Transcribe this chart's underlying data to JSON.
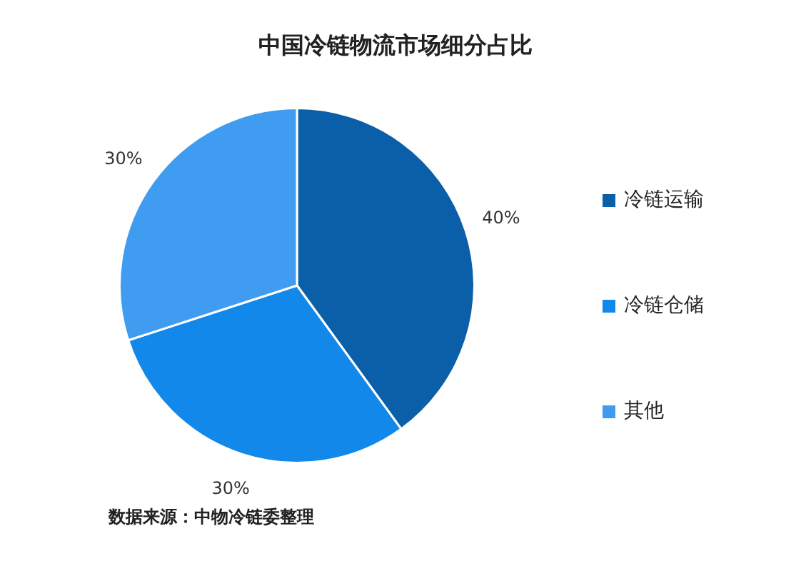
{
  "chart_data": {
    "type": "pie",
    "title": "中国冷链物流市场细分占比",
    "categories": [
      "冷链运输",
      "冷链仓储",
      "其他"
    ],
    "values": [
      40,
      30,
      30
    ],
    "colors": [
      "#0b5fa8",
      "#1288ea",
      "#409cf0"
    ],
    "value_labels": [
      "40%",
      "30%",
      "30%"
    ],
    "legend": "right",
    "annotations": [
      "数据来源：中物冷链委整理"
    ]
  }
}
